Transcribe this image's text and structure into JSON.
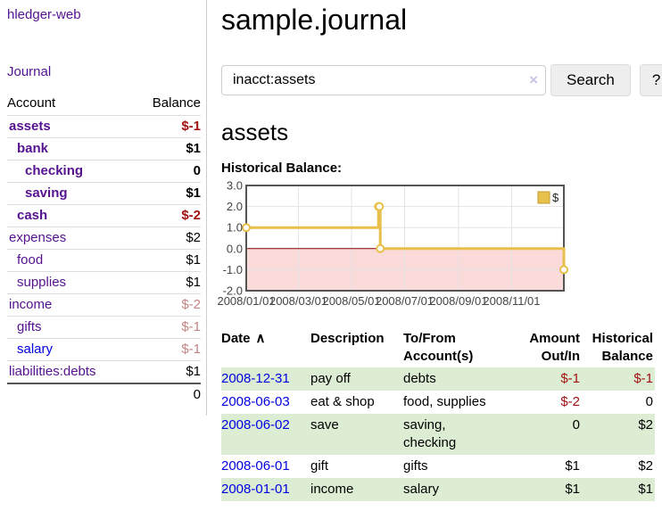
{
  "brand": "hledger-web",
  "nav": {
    "journal": "Journal"
  },
  "colors": {
    "link_purple": "#55128f",
    "link_blue": "#0202e0",
    "negative_strong": "#a01212",
    "negative_muted": "#c48484",
    "row_stripe_green": "#dcedd4",
    "chart_gold": "#e8bf4a",
    "chart_negative_pink": "#fbdada"
  },
  "sidebar": {
    "header": {
      "account": "Account",
      "balance": "Balance"
    },
    "accounts": [
      {
        "name": "assets",
        "depth": 0,
        "bold": true,
        "link": "purple",
        "balance": "$-1",
        "tone": "neg-strong"
      },
      {
        "name": "bank",
        "depth": 1,
        "bold": true,
        "link": "purple",
        "balance": "$1",
        "tone": "pos"
      },
      {
        "name": "checking",
        "depth": 2,
        "bold": true,
        "link": "purple",
        "balance": "0",
        "tone": "pos"
      },
      {
        "name": "saving",
        "depth": 2,
        "bold": true,
        "link": "purple",
        "balance": "$1",
        "tone": "pos"
      },
      {
        "name": "cash",
        "depth": 1,
        "bold": true,
        "link": "purple",
        "balance": "$-2",
        "tone": "neg-strong"
      },
      {
        "name": "expenses",
        "depth": 0,
        "bold": false,
        "link": "purple",
        "balance": "$2",
        "tone": "pos"
      },
      {
        "name": "food",
        "depth": 1,
        "bold": false,
        "link": "purple",
        "balance": "$1",
        "tone": "pos"
      },
      {
        "name": "supplies",
        "depth": 1,
        "bold": false,
        "link": "purple",
        "balance": "$1",
        "tone": "pos"
      },
      {
        "name": "income",
        "depth": 0,
        "bold": false,
        "link": "purple",
        "balance": "$-2",
        "tone": "neg-muted"
      },
      {
        "name": "gifts",
        "depth": 1,
        "bold": false,
        "link": "purple",
        "balance": "$-1",
        "tone": "neg-muted"
      },
      {
        "name": "salary",
        "depth": 1,
        "bold": false,
        "link": "blue",
        "balance": "$-1",
        "tone": "neg-muted"
      },
      {
        "name": "liabilities:debts",
        "depth": 0,
        "bold": false,
        "link": "purple",
        "balance": "$1",
        "tone": "pos"
      }
    ],
    "total": "0"
  },
  "main": {
    "title": "sample.journal",
    "search": {
      "value": "inacct:assets",
      "clear": "×",
      "button": "Search",
      "help": "?"
    },
    "account_title": "assets",
    "chart_label": "Historical Balance:"
  },
  "chart_data": {
    "type": "line",
    "step": true,
    "title": "Historical Balance",
    "series": [
      {
        "name": "$",
        "points": [
          [
            "2008-01-01",
            1
          ],
          [
            "2008-06-01",
            2
          ],
          [
            "2008-06-02",
            2
          ],
          [
            "2008-06-03",
            0
          ],
          [
            "2008-12-31",
            -1
          ]
        ]
      }
    ],
    "x_range": [
      "2008-01-01",
      "2008-12-31"
    ],
    "ylim": [
      -2,
      3
    ],
    "yticks": [
      "3.0",
      "2.0",
      "1.0",
      "0.0",
      "-1.0",
      "-2.0"
    ],
    "xticks": [
      {
        "date": "2008-01-01",
        "label": "2008/01/01"
      },
      {
        "date": "2008-03-01",
        "label": "2008/03/01"
      },
      {
        "date": "2008-05-01",
        "label": "2008/05/01"
      },
      {
        "date": "2008-07-01",
        "label": "2008/07/01"
      },
      {
        "date": "2008-09-01",
        "label": "2008/09/01"
      },
      {
        "date": "2008-11-01",
        "label": "2008/11/01"
      }
    ],
    "legend": {
      "label": "$",
      "position": "top-right"
    },
    "grid": true,
    "negative_shade": true,
    "colors": {
      "line": "#e8bf4a",
      "marker_fill": "#ffffff",
      "negative_fill": "#fbdada",
      "zero_line": "#8b0000",
      "grid": "#e3e3e3",
      "border": "#545454",
      "legend_fill": "#e8c14d",
      "legend_border": "#bf9b30",
      "tick_text": "#444444"
    }
  },
  "register": {
    "columns": [
      {
        "label": "Date",
        "sort_indicator": "∧",
        "align": "left"
      },
      {
        "label": "Description",
        "align": "left"
      },
      {
        "label": "To/From",
        "label2": "Account(s)",
        "align": "left"
      },
      {
        "label": "Amount",
        "label2": "Out/In",
        "align": "right"
      },
      {
        "label": "Historical",
        "label2": "Balance",
        "align": "right"
      }
    ],
    "rows": [
      {
        "date": "2008-12-31",
        "description": "pay off",
        "accounts": "debts",
        "amount": "$-1",
        "amount_neg": true,
        "balance": "$-1",
        "balance_neg": true
      },
      {
        "date": "2008-06-03",
        "description": "eat & shop",
        "accounts": "food, supplies",
        "amount": "$-2",
        "amount_neg": true,
        "balance": "0",
        "balance_neg": false
      },
      {
        "date": "2008-06-02",
        "description": "save",
        "accounts": "saving, checking",
        "amount": "0",
        "amount_neg": false,
        "balance": "$2",
        "balance_neg": false
      },
      {
        "date": "2008-06-01",
        "description": "gift",
        "accounts": "gifts",
        "amount": "$1",
        "amount_neg": false,
        "balance": "$2",
        "balance_neg": false
      },
      {
        "date": "2008-01-01",
        "description": "income",
        "accounts": "salary",
        "amount": "$1",
        "amount_neg": false,
        "balance": "$1",
        "balance_neg": false
      }
    ]
  }
}
